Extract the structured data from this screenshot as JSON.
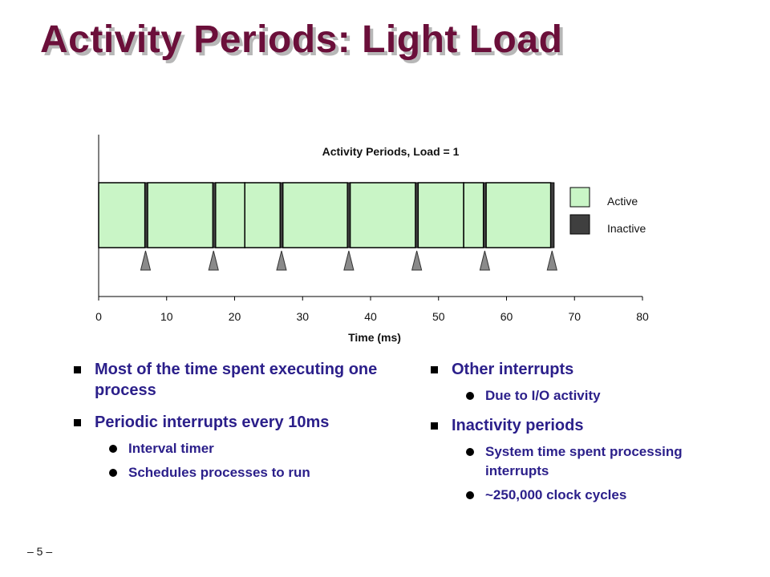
{
  "slide": {
    "title": "Activity Periods: Light Load",
    "page_number": "– 5 –"
  },
  "chart_data": {
    "type": "timeline",
    "title": "Activity Periods, Load = 1",
    "xlabel": "Time (ms)",
    "xlim": [
      0,
      80
    ],
    "xticks": [
      0,
      10,
      20,
      30,
      40,
      50,
      60,
      70,
      80
    ],
    "legend": {
      "position": "right",
      "entries": [
        {
          "label": "Active",
          "color": "#c9f5c6"
        },
        {
          "label": "Inactive",
          "color": "#3f3f3f"
        }
      ]
    },
    "active_periods": [
      [
        0,
        6.8
      ],
      [
        7.2,
        16.8
      ],
      [
        17.2,
        21.5
      ],
      [
        21.5,
        26.7
      ],
      [
        27.1,
        36.6
      ],
      [
        37.0,
        46.6
      ],
      [
        47.0,
        53.7
      ],
      [
        53.7,
        56.6
      ],
      [
        57.0,
        66.5
      ]
    ],
    "inactive_periods": [
      [
        6.8,
        7.2
      ],
      [
        16.8,
        17.2
      ],
      [
        26.7,
        27.1
      ],
      [
        36.6,
        37.0
      ],
      [
        46.6,
        47.0
      ],
      [
        56.6,
        57.0
      ],
      [
        66.5,
        67.0
      ]
    ],
    "interrupt_markers": [
      6.9,
      16.9,
      26.9,
      36.8,
      46.8,
      56.8,
      66.7
    ]
  },
  "bullets": {
    "left": [
      {
        "text": "Most of the time spent executing one process",
        "sub": []
      },
      {
        "text": "Periodic interrupts every 10ms",
        "sub": [
          "Interval timer",
          "Schedules processes to run"
        ]
      }
    ],
    "right": [
      {
        "text": "Other interrupts",
        "sub": [
          "Due to I/O activity"
        ]
      },
      {
        "text": "Inactivity periods",
        "sub": [
          "System time spent processing interrupts",
          "~250,000 clock cycles"
        ]
      }
    ]
  },
  "colors": {
    "title": "#6b0f3a",
    "bullet_text": "#2b1f8a",
    "active": "#c9f5c6",
    "inactive": "#3f3f3f",
    "marker": "#8a8a8a"
  }
}
